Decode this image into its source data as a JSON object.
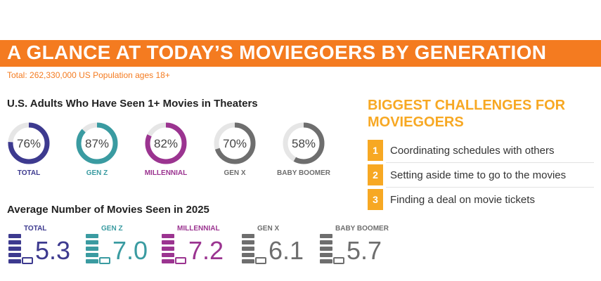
{
  "title": "A GLANCE AT TODAY’S MOVIEGOERS BY GENERATION",
  "subtitle": "Total: 262,330,000 US Population ages 18+",
  "seen_section": {
    "heading": "U.S. Adults Who Have Seen 1+ Movies in Theaters",
    "items": [
      {
        "label": "TOTAL",
        "value": 76,
        "display": "76%",
        "color": "#3d3a8f"
      },
      {
        "label": "GEN Z",
        "value": 87,
        "display": "87%",
        "color": "#3a9ba1"
      },
      {
        "label": "MILLENNIAL",
        "value": 82,
        "display": "82%",
        "color": "#9b3490"
      },
      {
        "label": "GEN X",
        "value": 70,
        "display": "70%",
        "color": "#6e6e6e"
      },
      {
        "label": "BABY BOOMER",
        "value": 58,
        "display": "58%",
        "color": "#6e6e6e"
      }
    ],
    "track_color": "#e6e6e6"
  },
  "average_section": {
    "heading": "Average Number of Movies Seen in 2025",
    "items": [
      {
        "label": "TOTAL",
        "value": "5.3",
        "color": "#3d3a8f",
        "label_color": "#3d3a8f"
      },
      {
        "label": "GEN Z",
        "value": "7.0",
        "color": "#3a9ba1",
        "label_color": "#3a9ba1"
      },
      {
        "label": "MILLENNIAL",
        "value": "7.2",
        "color": "#9b3490",
        "label_color": "#9b3490"
      },
      {
        "label": "GEN X",
        "value": "6.1",
        "color": "#6e6e6e",
        "label_color": "#6e6e6e"
      },
      {
        "label": "BABY BOOMER",
        "value": "5.7",
        "color": "#6e6e6e",
        "label_color": "#6e6e6e"
      }
    ],
    "icon": "ticket-stack-icon"
  },
  "challenges": {
    "title": "BIGGEST CHALLENGES FOR MOVIEGOERS",
    "items": [
      {
        "num": "1",
        "text": "Coordinating schedules with others"
      },
      {
        "num": "2",
        "text": "Setting aside time to go to the movies"
      },
      {
        "num": "3",
        "text": "Finding a deal on movie tickets"
      }
    ],
    "accent_color": "#f7a823"
  },
  "colors": {
    "banner": "#f47b20",
    "subtitle": "#f47b20"
  }
}
